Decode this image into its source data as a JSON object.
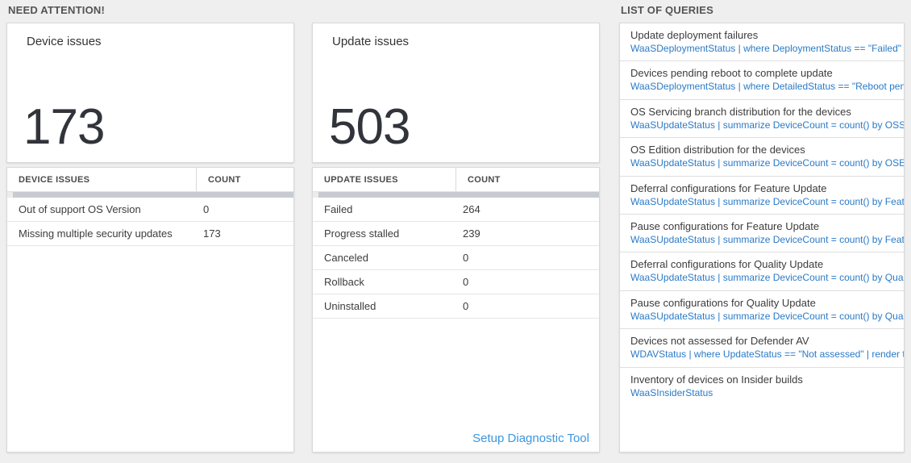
{
  "colors": {
    "query_link_blue": "#2a7ac7",
    "setup_link_blue": "#3d96dd",
    "big_number": "#31343a",
    "panel_background": "#ffffff",
    "page_background": "#efefef"
  },
  "sections": {
    "need_attention_label": "NEED ATTENTION!",
    "queries_label": "LIST OF QUERIES"
  },
  "device_card": {
    "title": "Device issues",
    "count": "173"
  },
  "update_card": {
    "title": "Update issues",
    "count": "503"
  },
  "device_table": {
    "headers": {
      "name": "DEVICE ISSUES",
      "count": "COUNT"
    },
    "rows": [
      {
        "name": "Out of support OS Version",
        "count": "0"
      },
      {
        "name": "Missing multiple security updates",
        "count": "173"
      }
    ]
  },
  "update_table": {
    "headers": {
      "name": "UPDATE ISSUES",
      "count": "COUNT"
    },
    "rows": [
      {
        "name": "Failed",
        "count": "264"
      },
      {
        "name": "Progress stalled",
        "count": "239"
      },
      {
        "name": "Canceled",
        "count": "0"
      },
      {
        "name": "Rollback",
        "count": "0"
      },
      {
        "name": "Uninstalled",
        "count": "0"
      }
    ],
    "footer_link": "Setup Diagnostic Tool"
  },
  "query_list": [
    {
      "title": "Update deployment failures",
      "query": "WaaSDeploymentStatus | where DeploymentStatus == \"Failed\" |..."
    },
    {
      "title": "Devices pending reboot to complete update",
      "query": "WaaSDeploymentStatus | where DetailedStatus == \"Reboot pend..."
    },
    {
      "title": "OS Servicing branch distribution for the devices",
      "query": "WaaSUpdateStatus | summarize DeviceCount = count() by OSSer..."
    },
    {
      "title": "OS Edition distribution for the devices",
      "query": "WaaSUpdateStatus | summarize DeviceCount = count() by OSEdit..."
    },
    {
      "title": "Deferral configurations for Feature Update",
      "query": "WaaSUpdateStatus | summarize DeviceCount = count() by Featur..."
    },
    {
      "title": "Pause configurations for Feature Update",
      "query": "WaaSUpdateStatus | summarize DeviceCount = count() by Featur..."
    },
    {
      "title": "Deferral configurations for Quality Update",
      "query": "WaaSUpdateStatus | summarize DeviceCount = count() by Qualit..."
    },
    {
      "title": "Pause configurations for Quality Update",
      "query": "WaaSUpdateStatus | summarize DeviceCount = count() by Qualit..."
    },
    {
      "title": "Devices not assessed for Defender AV",
      "query": "WDAVStatus | where UpdateStatus == \"Not assessed\" | render ta..."
    },
    {
      "title": "Inventory of devices on Insider builds",
      "query": "WaaSInsiderStatus"
    }
  ]
}
